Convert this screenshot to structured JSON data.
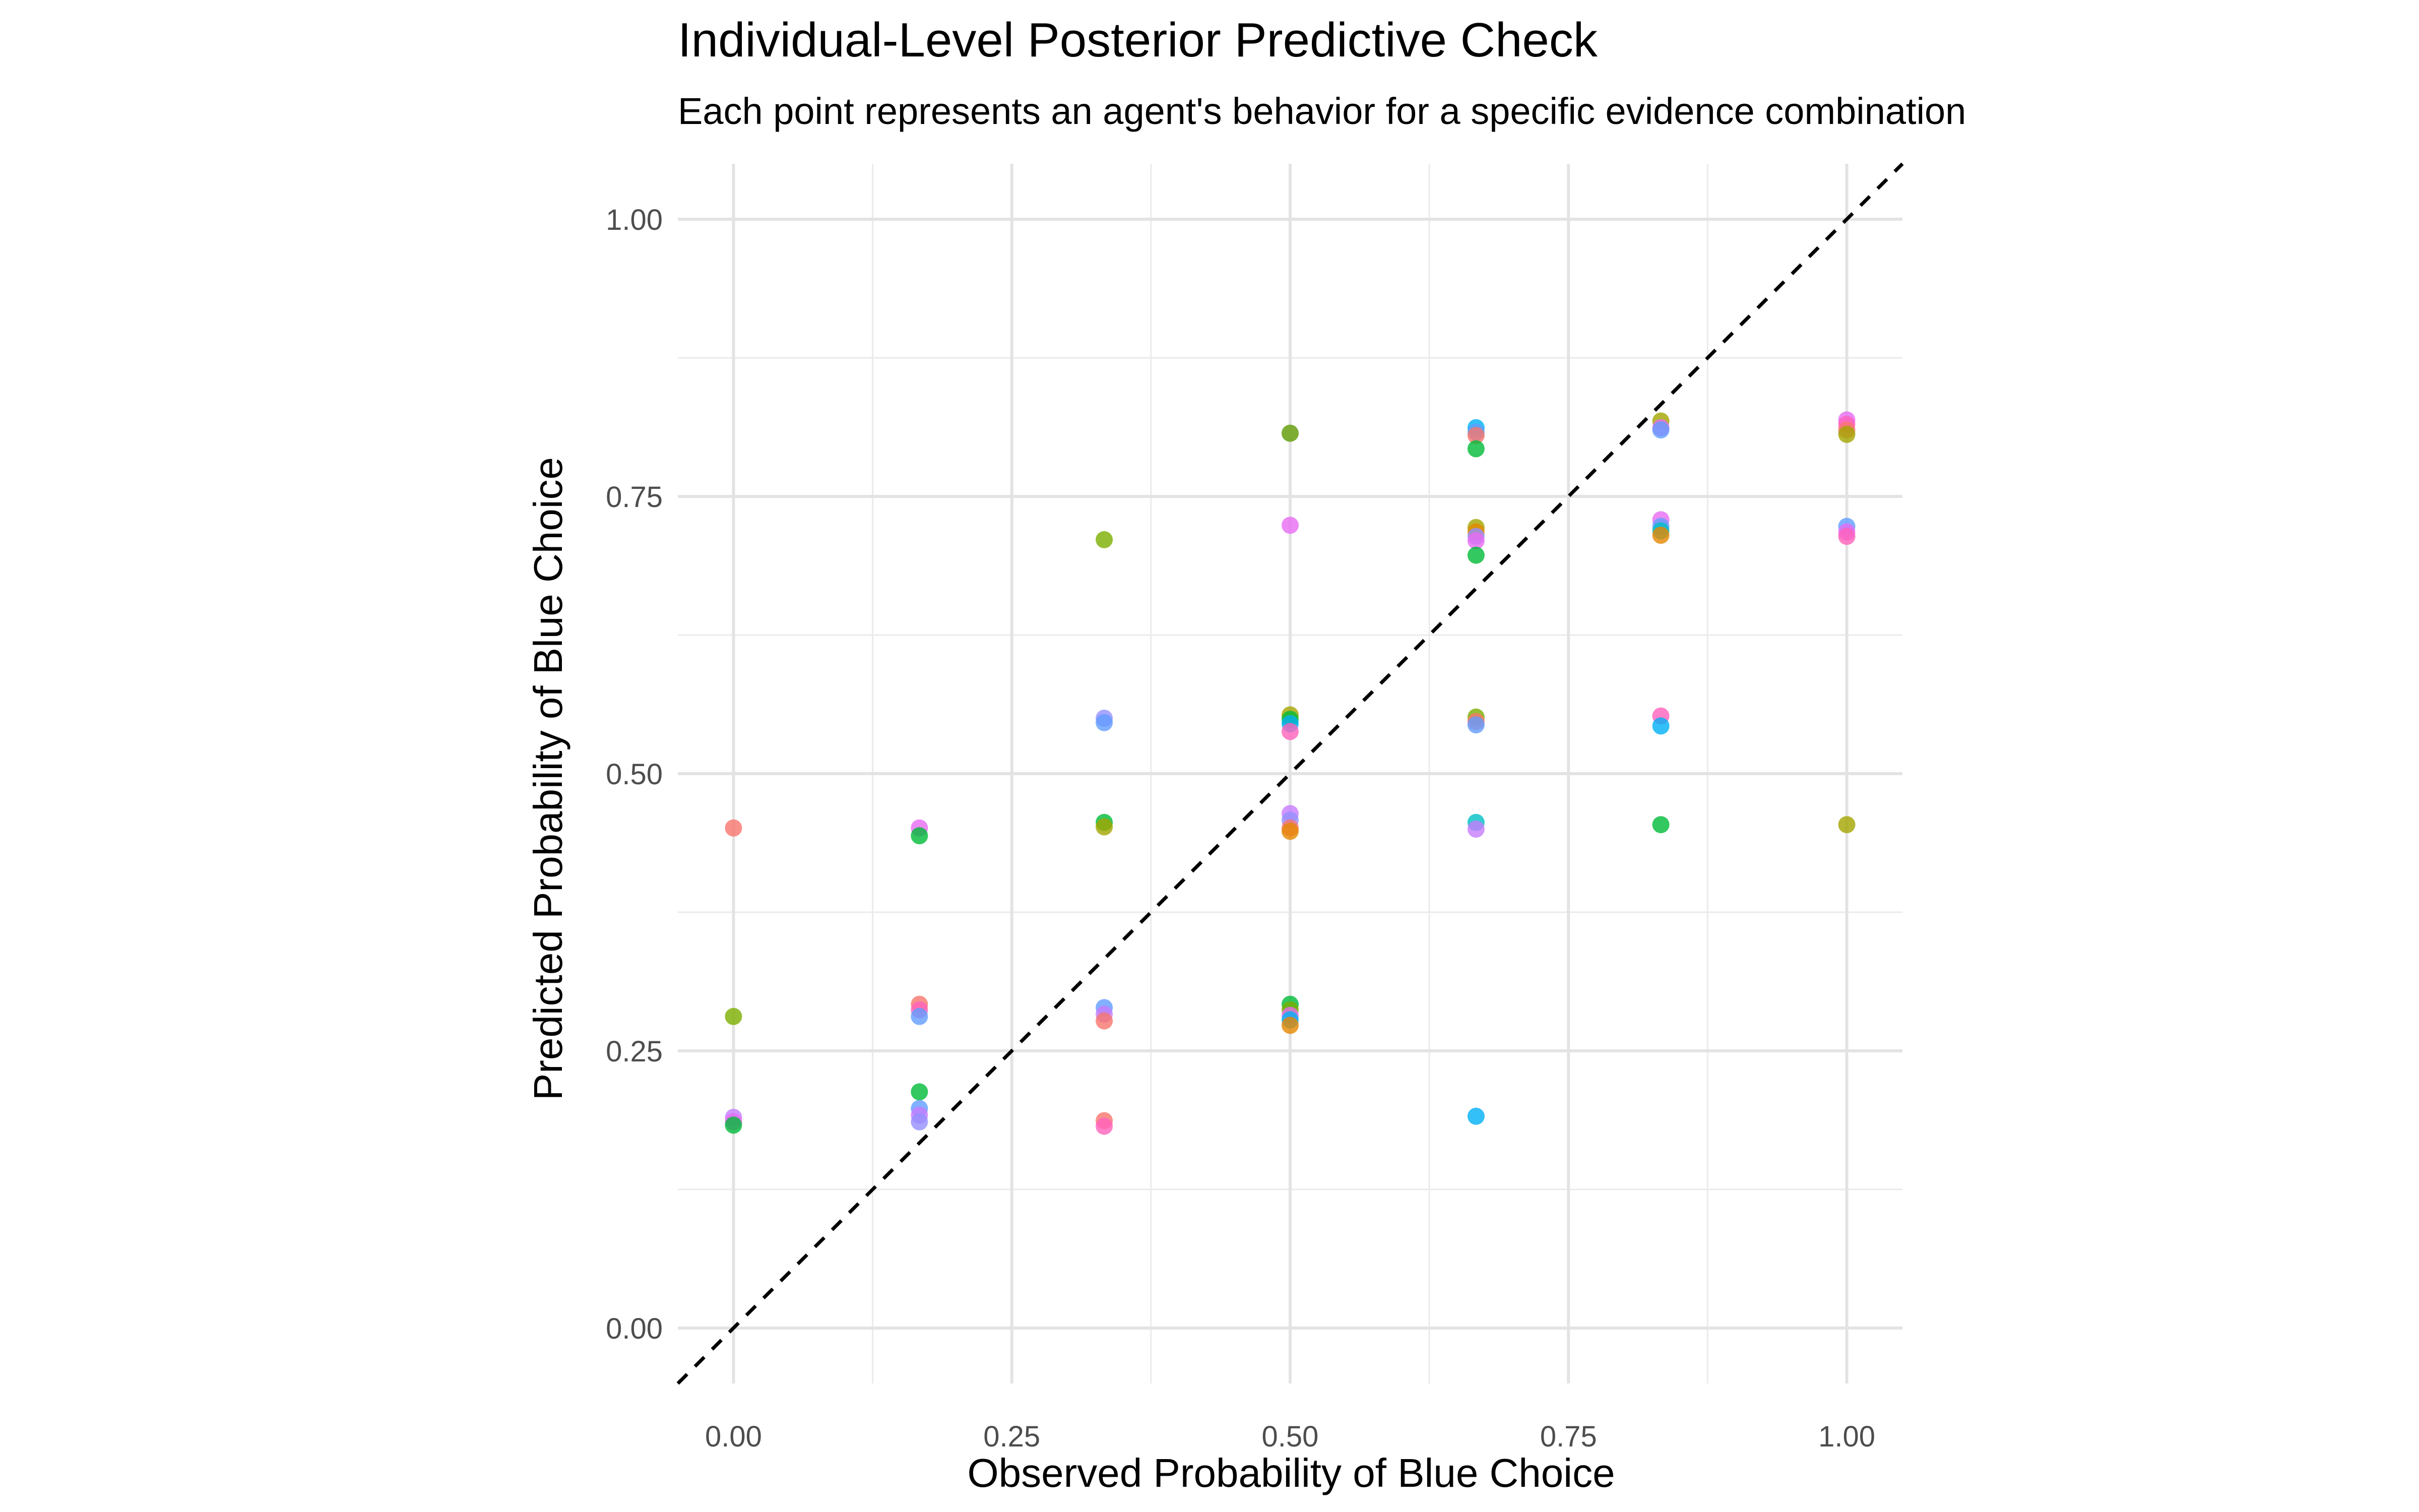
{
  "chart_data": {
    "type": "scatter",
    "title": "Individual-Level Posterior Predictive Check",
    "subtitle": "Each point represents an agent's behavior for a specific evidence combination",
    "xlabel": "Observed Probability of Blue Choice",
    "ylabel": "Predicted Probability of Blue Choice",
    "xlim": [
      -0.05,
      1.05
    ],
    "ylim": [
      -0.05,
      1.05
    ],
    "x_ticks": [
      "0.00",
      "0.25",
      "0.50",
      "0.75",
      "1.00"
    ],
    "y_ticks": [
      "0.00",
      "0.25",
      "0.50",
      "0.75",
      "1.00"
    ],
    "x_tick_values": [
      0,
      0.25,
      0.5,
      0.75,
      1
    ],
    "y_tick_values": [
      0,
      0.25,
      0.5,
      0.75,
      1
    ],
    "grid": true,
    "reference_line": {
      "style": "dashed",
      "color": "#000000",
      "slope": 1,
      "intercept": 0
    },
    "legend": "none",
    "points": [
      {
        "x": 0.0,
        "y": 0.451,
        "color": "#F8766D"
      },
      {
        "x": 0.0,
        "y": 0.281,
        "color": "#7CAE00"
      },
      {
        "x": 0.0,
        "y": 0.19,
        "color": "#C77CFF"
      },
      {
        "x": 0.0,
        "y": 0.186,
        "color": "#E76BF3"
      },
      {
        "x": 0.0,
        "y": 0.183,
        "color": "#00BA38"
      },
      {
        "x": 0.167,
        "y": 0.451,
        "color": "#E76BF3"
      },
      {
        "x": 0.167,
        "y": 0.444,
        "color": "#00BA38"
      },
      {
        "x": 0.167,
        "y": 0.292,
        "color": "#F8766D"
      },
      {
        "x": 0.167,
        "y": 0.287,
        "color": "#FF62BC"
      },
      {
        "x": 0.167,
        "y": 0.281,
        "color": "#619CFF"
      },
      {
        "x": 0.167,
        "y": 0.213,
        "color": "#00BA38"
      },
      {
        "x": 0.167,
        "y": 0.198,
        "color": "#619CFF"
      },
      {
        "x": 0.167,
        "y": 0.192,
        "color": "#C77CFF"
      },
      {
        "x": 0.167,
        "y": 0.186,
        "color": "#9590FF"
      },
      {
        "x": 0.333,
        "y": 0.711,
        "color": "#7CAE00"
      },
      {
        "x": 0.333,
        "y": 0.55,
        "color": "#9590FF"
      },
      {
        "x": 0.333,
        "y": 0.546,
        "color": "#619CFF"
      },
      {
        "x": 0.333,
        "y": 0.456,
        "color": "#00BA38"
      },
      {
        "x": 0.333,
        "y": 0.452,
        "color": "#A3A500"
      },
      {
        "x": 0.333,
        "y": 0.289,
        "color": "#619CFF"
      },
      {
        "x": 0.333,
        "y": 0.283,
        "color": "#C77CFF"
      },
      {
        "x": 0.333,
        "y": 0.277,
        "color": "#F8766D"
      },
      {
        "x": 0.333,
        "y": 0.187,
        "color": "#F8766D"
      },
      {
        "x": 0.333,
        "y": 0.182,
        "color": "#FF62BC"
      },
      {
        "x": 0.5,
        "y": 0.807,
        "color": "#619CFF"
      },
      {
        "x": 0.5,
        "y": 0.807,
        "color": "#7CAE00"
      },
      {
        "x": 0.5,
        "y": 0.724,
        "color": "#E76BF3"
      },
      {
        "x": 0.5,
        "y": 0.553,
        "color": "#A3A500"
      },
      {
        "x": 0.5,
        "y": 0.549,
        "color": "#00BA38"
      },
      {
        "x": 0.5,
        "y": 0.545,
        "color": "#00B0F6"
      },
      {
        "x": 0.5,
        "y": 0.538,
        "color": "#FF62BC"
      },
      {
        "x": 0.5,
        "y": 0.464,
        "color": "#C77CFF"
      },
      {
        "x": 0.5,
        "y": 0.458,
        "color": "#9590FF"
      },
      {
        "x": 0.5,
        "y": 0.451,
        "color": "#F8766D"
      },
      {
        "x": 0.5,
        "y": 0.448,
        "color": "#E58700"
      },
      {
        "x": 0.5,
        "y": 0.292,
        "color": "#00BA38"
      },
      {
        "x": 0.5,
        "y": 0.287,
        "color": "#7CAE00"
      },
      {
        "x": 0.5,
        "y": 0.282,
        "color": "#E76BF3"
      },
      {
        "x": 0.5,
        "y": 0.278,
        "color": "#00B0F6"
      },
      {
        "x": 0.5,
        "y": 0.273,
        "color": "#E58700"
      },
      {
        "x": 0.667,
        "y": 0.812,
        "color": "#00B0F6"
      },
      {
        "x": 0.667,
        "y": 0.808,
        "color": "#619CFF"
      },
      {
        "x": 0.667,
        "y": 0.805,
        "color": "#F8766D"
      },
      {
        "x": 0.667,
        "y": 0.793,
        "color": "#00BA38"
      },
      {
        "x": 0.667,
        "y": 0.722,
        "color": "#A3A500"
      },
      {
        "x": 0.667,
        "y": 0.718,
        "color": "#E58700"
      },
      {
        "x": 0.667,
        "y": 0.714,
        "color": "#9590FF"
      },
      {
        "x": 0.667,
        "y": 0.71,
        "color": "#E76BF3"
      },
      {
        "x": 0.667,
        "y": 0.697,
        "color": "#00BA38"
      },
      {
        "x": 0.667,
        "y": 0.551,
        "color": "#7CAE00"
      },
      {
        "x": 0.667,
        "y": 0.547,
        "color": "#F8766D"
      },
      {
        "x": 0.667,
        "y": 0.544,
        "color": "#619CFF"
      },
      {
        "x": 0.667,
        "y": 0.456,
        "color": "#00BFC4"
      },
      {
        "x": 0.667,
        "y": 0.45,
        "color": "#C77CFF"
      },
      {
        "x": 0.667,
        "y": 0.191,
        "color": "#00B0F6"
      },
      {
        "x": 0.833,
        "y": 0.818,
        "color": "#A3A500"
      },
      {
        "x": 0.833,
        "y": 0.812,
        "color": "#E76BF3"
      },
      {
        "x": 0.833,
        "y": 0.81,
        "color": "#619CFF"
      },
      {
        "x": 0.833,
        "y": 0.729,
        "color": "#E76BF3"
      },
      {
        "x": 0.833,
        "y": 0.723,
        "color": "#619CFF"
      },
      {
        "x": 0.833,
        "y": 0.719,
        "color": "#00BFC4"
      },
      {
        "x": 0.833,
        "y": 0.715,
        "color": "#E58700"
      },
      {
        "x": 0.833,
        "y": 0.552,
        "color": "#FF62BC"
      },
      {
        "x": 0.833,
        "y": 0.543,
        "color": "#00B0F6"
      },
      {
        "x": 0.833,
        "y": 0.454,
        "color": "#00BA38"
      },
      {
        "x": 1.0,
        "y": 0.819,
        "color": "#E76BF3"
      },
      {
        "x": 1.0,
        "y": 0.815,
        "color": "#FF62BC"
      },
      {
        "x": 1.0,
        "y": 0.81,
        "color": "#F8766D"
      },
      {
        "x": 1.0,
        "y": 0.806,
        "color": "#A3A500"
      },
      {
        "x": 1.0,
        "y": 0.723,
        "color": "#619CFF"
      },
      {
        "x": 1.0,
        "y": 0.718,
        "color": "#E76BF3"
      },
      {
        "x": 1.0,
        "y": 0.714,
        "color": "#FF62BC"
      },
      {
        "x": 1.0,
        "y": 0.454,
        "color": "#A3A500"
      }
    ]
  }
}
